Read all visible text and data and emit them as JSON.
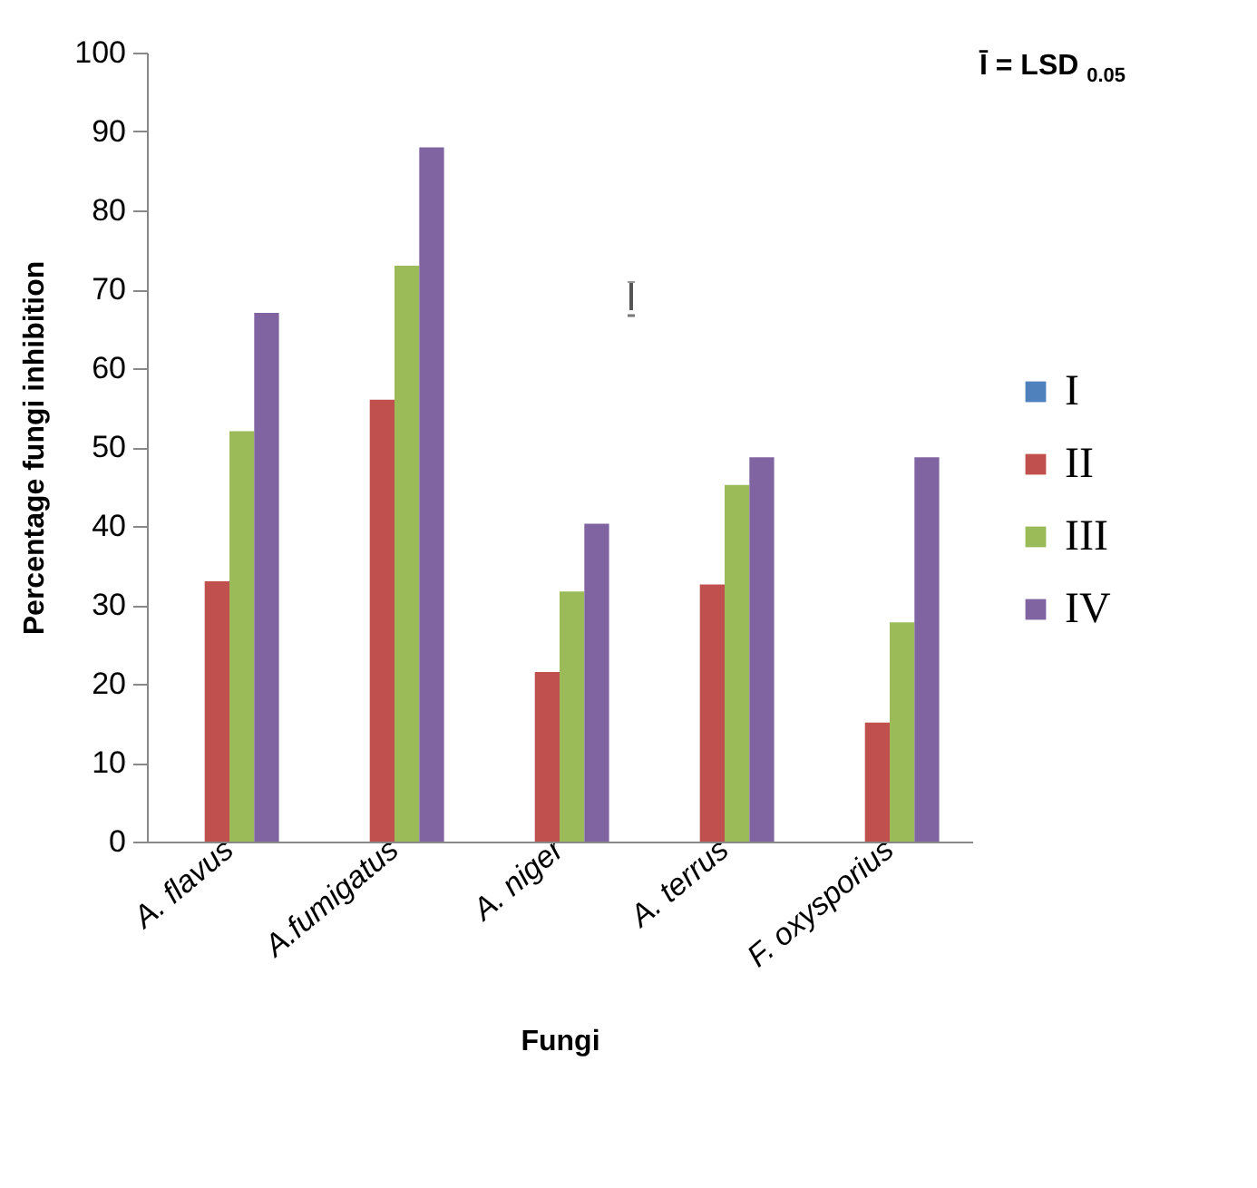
{
  "chart_data": {
    "type": "bar",
    "xlabel": "Fungi",
    "ylabel": "Percentage fungi inhibition",
    "categories": [
      "A. flavus",
      "A.fumigatus",
      "A. niger",
      "A. terrus",
      "F. oxysporius"
    ],
    "series": [
      {
        "name": "I",
        "color": "#4f81bd",
        "values": [
          0,
          0,
          0,
          0,
          0
        ]
      },
      {
        "name": "II",
        "color": "#c0504d",
        "values": [
          33,
          56,
          21.5,
          32.6,
          15.1
        ]
      },
      {
        "name": "III",
        "color": "#9bbb59",
        "values": [
          52,
          73,
          31.7,
          45.2,
          27.8
        ]
      },
      {
        "name": "IV",
        "color": "#8064a2",
        "values": [
          67,
          88,
          40.3,
          48.7,
          48.7
        ]
      }
    ],
    "ylim": [
      0,
      100
    ],
    "yticks": [
      0,
      10,
      20,
      30,
      40,
      50,
      60,
      70,
      80,
      90,
      100
    ],
    "grid": false,
    "legend": "right",
    "annotations": [
      "Ī = LSD $_{0.05}$"
    ]
  }
}
